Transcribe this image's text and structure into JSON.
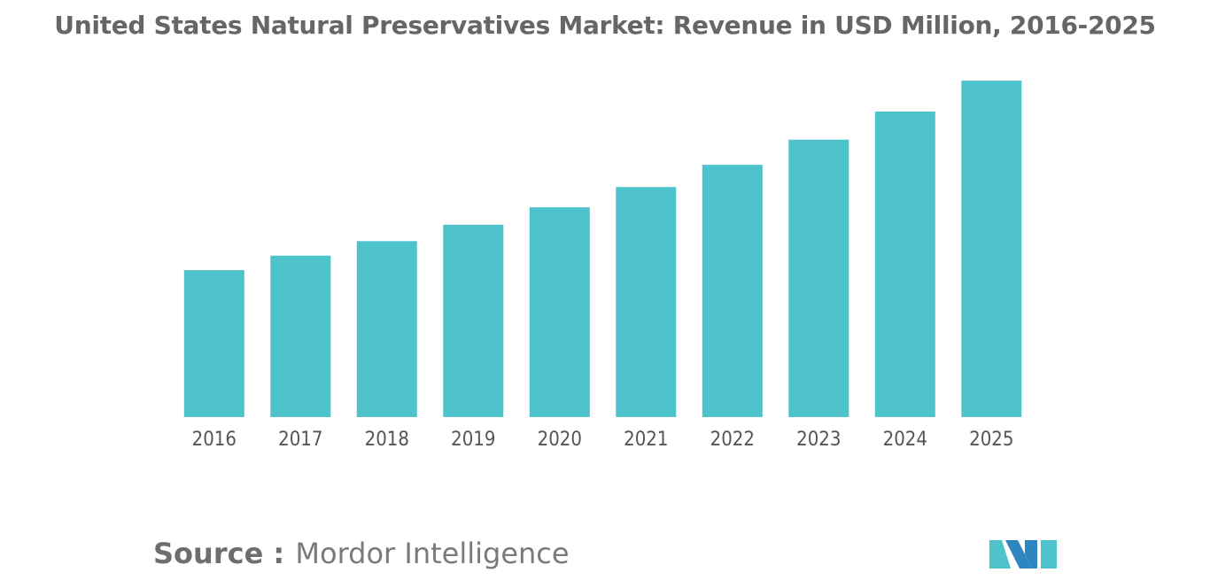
{
  "chart_data": {
    "type": "bar",
    "title": "United States Natural Preservatives Market: Revenue in USD Million, 2016-2025",
    "categories": [
      "2016",
      "2017",
      "2018",
      "2019",
      "2020",
      "2021",
      "2022",
      "2023",
      "2024",
      "2025"
    ],
    "values": [
      152,
      167,
      182,
      199,
      217,
      238,
      261,
      287,
      316,
      348
    ],
    "xlabel": "",
    "ylabel": "",
    "ylim": [
      0,
      360
    ],
    "grid": false,
    "legend": "none",
    "bar_color": "#4FC3CB"
  },
  "source": {
    "label": "Source :",
    "name": "Mordor Intelligence"
  },
  "colors": {
    "title": "#666666",
    "axis_text": "#555555",
    "logo_teal": "#4FC3CB",
    "logo_blue": "#2E86C1"
  }
}
